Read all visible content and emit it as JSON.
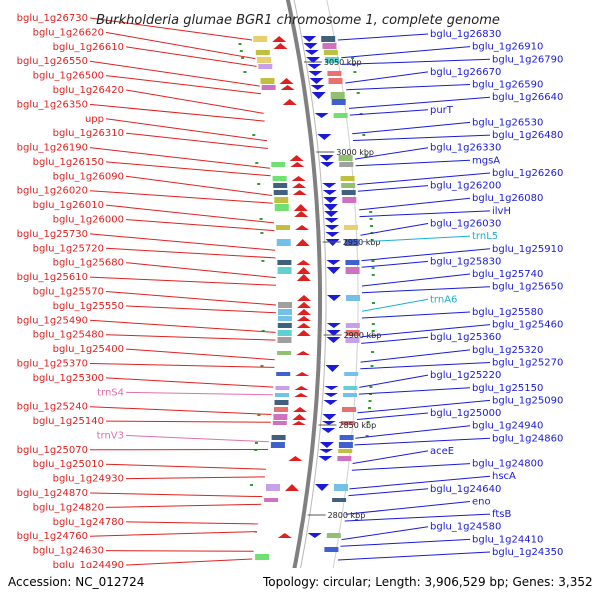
{
  "title": "Burkholderia glumae BGR1 chromosome 1, complete genome",
  "accession": "Accession: NC_012724",
  "topology": "Topology: circular; Length: 3,906,529 bp; Genes: 3,352",
  "colors": {
    "reverse_strand": "#e02020",
    "forward_strand": "#1a1ad8",
    "trna": "#e070b0",
    "trna_forward": "#1ab0d0",
    "backbone": "#808080"
  },
  "kbp_ticks": [
    "3050 kbp",
    "3000 kbp",
    "2950 kbp",
    "2900 kbp",
    "2850 kbp",
    "2800 kbp"
  ],
  "left_labels": [
    "bglu_1g26730",
    "bglu_1g26620",
    "bglu_1g26610",
    "bglu_1g26550",
    "bglu_1g26500",
    "bglu_1g26420",
    "bglu_1g26350",
    "upp",
    "bglu_1g26310",
    "bglu_1g26190",
    "bglu_1g26150",
    "bglu_1g26090",
    "bglu_1g26020",
    "bglu_1g26010",
    "bglu_1g26000",
    "bglu_1g25730",
    "bglu_1g25720",
    "bglu_1g25680",
    "bglu_1g25610",
    "bglu_1g25570",
    "bglu_1g25550",
    "bglu_1g25490",
    "bglu_1g25480",
    "bglu_1g25400",
    "bglu_1g25370",
    "bglu_1g25300",
    "trnS4",
    "bglu_1g25240",
    "bglu_1g25140",
    "trnV3",
    "bglu_1g25070",
    "bglu_1g25010",
    "bglu_1g24930",
    "bglu_1g24870",
    "bglu_1g24820",
    "bglu_1g24780",
    "bglu_1g24760",
    "bglu_1g24630",
    "bglu_1g24490"
  ],
  "right_labels": [
    "bglu_1g26830",
    "bglu_1g26910",
    "bglu_1g26790",
    "bglu_1g26670",
    "bglu_1g26590",
    "bglu_1g26640",
    "purT",
    "bglu_1g26530",
    "bglu_1g26480",
    "bglu_1g26330",
    "mgsA",
    "bglu_1g26260",
    "bglu_1g26200",
    "bglu_1g26080",
    "ilvH",
    "bglu_1g26030",
    "trnL5",
    "bglu_1g25910",
    "bglu_1g25830",
    "bglu_1g25740",
    "bglu_1g25650",
    "trnA6",
    "bglu_1g25580",
    "bglu_1g25460",
    "bglu_1g25360",
    "bglu_1g25320",
    "bglu_1g25270",
    "bglu_1g25220",
    "bglu_1g25150",
    "bglu_1g25090",
    "bglu_1g25000",
    "bglu_1g24940",
    "bglu_1g24860",
    "aceE",
    "bglu_1g24800",
    "hscA",
    "bglu_1g24640",
    "eno",
    "ftsB",
    "bglu_1g24580",
    "bglu_1g24410",
    "bglu_1g24350"
  ]
}
